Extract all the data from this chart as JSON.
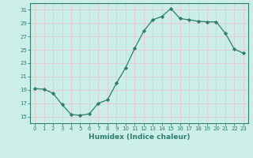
{
  "x": [
    0,
    1,
    2,
    3,
    4,
    5,
    6,
    7,
    8,
    9,
    10,
    11,
    12,
    13,
    14,
    15,
    16,
    17,
    18,
    19,
    20,
    21,
    22,
    23
  ],
  "y": [
    19.2,
    19.1,
    18.5,
    16.8,
    15.3,
    15.2,
    15.4,
    17.0,
    17.5,
    20.0,
    22.3,
    25.2,
    27.8,
    29.5,
    30.0,
    31.2,
    29.7,
    29.5,
    29.3,
    29.2,
    29.2,
    27.5,
    25.1,
    24.5
  ],
  "line_color": "#2e7d6e",
  "marker": "D",
  "marker_size": 2.2,
  "bg_color": "#cceee8",
  "grid_color": "#e8c8c8",
  "xlabel": "Humidex (Indice chaleur)",
  "ylabel": "",
  "title": "",
  "xlim": [
    -0.5,
    23.5
  ],
  "ylim": [
    14,
    32
  ],
  "yticks": [
    15,
    17,
    19,
    21,
    23,
    25,
    27,
    29,
    31
  ],
  "xticks": [
    0,
    1,
    2,
    3,
    4,
    5,
    6,
    7,
    8,
    9,
    10,
    11,
    12,
    13,
    14,
    15,
    16,
    17,
    18,
    19,
    20,
    21,
    22,
    23
  ],
  "tick_color": "#2e7d6e",
  "label_color": "#2e7d6e",
  "axis_color": "#2e7d6e",
  "xlabel_fontsize": 6.5,
  "tick_fontsize": 5.0
}
